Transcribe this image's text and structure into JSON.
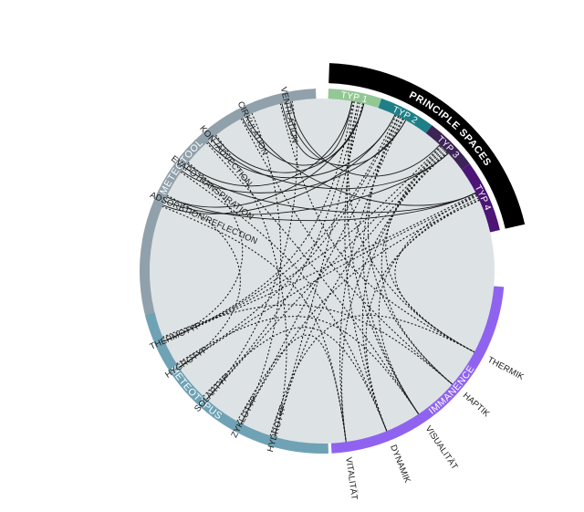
{
  "colors": {
    "background": "#ffffff",
    "inner_disc": "#dde3e5",
    "meteotool": "#91a1ab",
    "meteotypus": "#6fa2b4",
    "immanence": "#8f63f0",
    "typ1": "#93c795",
    "typ2": "#1f7f87",
    "typ3": "#3c2457",
    "typ4": "#4c1576",
    "principle": "#000000",
    "solid_line": "#1a1a1a",
    "dotted_line": "#1a1a1a"
  },
  "arcs": {
    "meteotool": "METEOTOOL",
    "meteotypus": "METEOTYPUS",
    "immanence": "IMMANENCE",
    "principle_spaces": "PRINCIPLE SPACES"
  },
  "types": [
    "TYP 1",
    "TYP 2",
    "TYP 3",
    "TYP 4"
  ],
  "meteotool_items": [
    "VENTILATION",
    "CIRKULATION",
    "KON-/ADVECTION",
    "EVAPOTRANSPIRATION",
    "ADSORBTION/REFLECTION"
  ],
  "meteotypus_items": [
    "THERMOTYP",
    "HYGROTYP",
    "SOLARTYP",
    "ZYKLOTYP",
    "HYDROTYP"
  ],
  "immanence_items": [
    "THERMIK",
    "HAPTIK",
    "VISUALITÄT",
    "DYNAMIK",
    "VITALITÄT"
  ],
  "icons": {
    "chord": "chord-line",
    "dotted": "dotted-chord-line"
  }
}
